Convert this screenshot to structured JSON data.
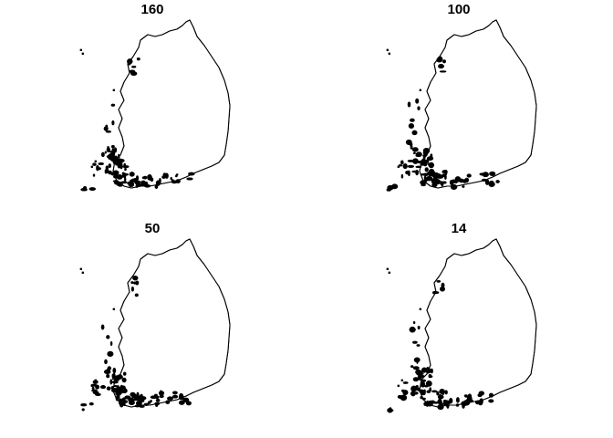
{
  "panels": [
    {
      "title": "160",
      "region_count": 160
    },
    {
      "title": "100",
      "region_count": 100
    },
    {
      "title": "50",
      "region_count": 50
    },
    {
      "title": "14",
      "region_count": 14
    }
  ],
  "colors": {
    "background": "#ffffff",
    "line": "#000000"
  }
}
